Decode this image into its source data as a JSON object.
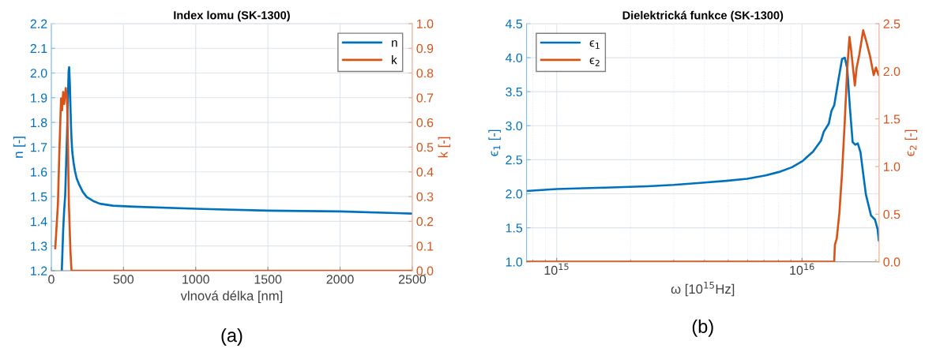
{
  "chart_data": [
    {
      "type": "line",
      "title": "Index lomu (SK-1300)",
      "xlabel": "vlnová délka [nm]",
      "ylabel": "n [-]",
      "y2label": "k [-]",
      "annotations": [
        "(a)"
      ],
      "grid": true,
      "legend": "top right",
      "xlim": [
        0,
        2500
      ],
      "xticks": [
        0,
        500,
        1000,
        1500,
        2000,
        2500
      ],
      "ylim": [
        1.2,
        2.2
      ],
      "yticks": [
        1.2,
        1.3,
        1.4,
        1.5,
        1.6,
        1.7,
        1.8,
        1.9,
        {
          "value": 2,
          "label": "2.0"
        },
        2.1,
        2.2
      ],
      "y2lim": [
        0,
        1
      ],
      "y2ticks": [
        {
          "value": 0,
          "label": "0.0"
        },
        0.1,
        0.2,
        0.3,
        0.4,
        0.5,
        0.6,
        0.7,
        0.8,
        0.9,
        {
          "value": 1,
          "label": "1.0"
        }
      ],
      "series": [
        {
          "name": "n",
          "color": "#0072bd",
          "x": [
            72.7,
            81.8,
            89,
            96.4,
            103.6,
            109,
            114.5,
            120,
            123.6,
            129,
            132.7,
            136.3,
            140,
            145.4,
            154.5,
            163.6,
            176.3,
            190.8,
            218,
            245.4,
            290.6,
            336,
            427,
            572,
            1045,
            1500,
            2000,
            2500
          ],
          "values": [
            1.2,
            1.36,
            1.445,
            1.508,
            1.657,
            1.753,
            1.891,
            2.008,
            2.024,
            1.945,
            1.859,
            1.785,
            1.732,
            1.679,
            1.636,
            1.604,
            1.572,
            1.551,
            1.519,
            1.498,
            1.482,
            1.471,
            1.463,
            1.459,
            1.45,
            1.443,
            1.44,
            1.431
          ]
        },
        {
          "name": "k",
          "color": "#d95319",
          "axis": "y2",
          "x": [
            27.3,
            45.4,
            54.5,
            67.3,
            74.5,
            81.8,
            89,
            100,
            109,
            114.5,
            121.8,
            132.7,
            140,
            2500
          ],
          "values": [
            0.09,
            0.266,
            0.457,
            0.697,
            0.649,
            0.723,
            0.675,
            0.739,
            0.691,
            0.532,
            0.266,
            0.074,
            0,
            0
          ]
        }
      ]
    },
    {
      "type": "line",
      "title": "Dielektrická funkce (SK-1300)",
      "xlabel": "ω [10$^{15}$Hz]",
      "ylabel": "ϵ$_{1}$ [-]",
      "y2label": "ϵ$_{2}$ [-]",
      "annotations": [
        "(b)"
      ],
      "grid": true,
      "legend": "top left",
      "log": "x",
      "xlim": [
        754000000000000.0,
        2.06e+16
      ],
      "xticks": [
        {
          "value": 1000000000000000.0,
          "label": "10$^{15}$"
        },
        {
          "value": 1e+16,
          "label": "10$^{16}$"
        }
      ],
      "ylim": [
        1,
        4.5
      ],
      "yticks": [
        {
          "value": 1,
          "label": "1.0"
        },
        1.5,
        {
          "value": 2,
          "label": "2.0"
        },
        2.5,
        {
          "value": 3,
          "label": "3.0"
        },
        3.5,
        {
          "value": 4,
          "label": "4.0"
        },
        4.5
      ],
      "y2lim": [
        0,
        2.5
      ],
      "y2ticks": [
        {
          "value": 0,
          "label": "0.0"
        },
        0.5,
        {
          "value": 1,
          "label": "1.0"
        },
        1.5,
        {
          "value": 2,
          "label": "2.0"
        },
        2.5
      ],
      "series": [
        {
          "name": "ϵ$_{1}$",
          "color": "#0072bd",
          "x": [
            754000000000000.0,
            1000000000000000.0,
            1580000000000000.0,
            2350000000000000.0,
            3000000000000000.0,
            3840000000000000.0,
            4910000000000000.0,
            5980000000000000.0,
            7110000000000000.0,
            8050000000000000.0,
            9100000000000000.0,
            1.004e+16,
            1.109e+16,
            1.194e+16,
            1.225e+16,
            1.285e+16,
            1.318e+16,
            1.352e+16,
            1.403e+16,
            1.455e+16,
            1.493e+16,
            1.528e+16,
            1.567e+16,
            1.607e+16,
            1.648e+16,
            1.687e+16,
            1.73e+16,
            1.774e+16,
            1.82e+16,
            1.91e+16,
            1.982e+16,
            2.032e+16,
            2.055e+16
          ],
          "values": [
            2.04,
            2.07,
            2.09,
            2.11,
            2.13,
            2.16,
            2.19,
            2.22,
            2.27,
            2.32,
            2.39,
            2.48,
            2.62,
            2.78,
            2.91,
            3.03,
            3.22,
            3.3,
            3.65,
            3.98,
            4.0,
            3.84,
            3.26,
            2.76,
            2.72,
            2.74,
            2.61,
            2.3,
            1.99,
            1.68,
            1.62,
            1.48,
            1.31
          ]
        },
        {
          "name": "ϵ$_{2}$",
          "color": "#d95319",
          "axis": "y2",
          "x": [
            754000000000000.0,
            1.352e+16,
            1.361e+16,
            1.384e+16,
            1.419e+16,
            1.455e+16,
            1.493e+16,
            1.528e+16,
            1.56e+16,
            1.585e+16,
            1.641e+16,
            1.667e+16,
            1.71e+16,
            1.774e+16,
            1.82e+16,
            1.888e+16,
            1.959e+16,
            2e+16,
            2.05e+16
          ],
          "values": [
            0,
            0,
            0.18,
            0.24,
            0.51,
            0.93,
            1.48,
            2.03,
            2.36,
            2.22,
            1.85,
            2.03,
            2.17,
            2.43,
            2.33,
            2.17,
            1.96,
            2.04,
            1.96
          ]
        }
      ]
    }
  ]
}
